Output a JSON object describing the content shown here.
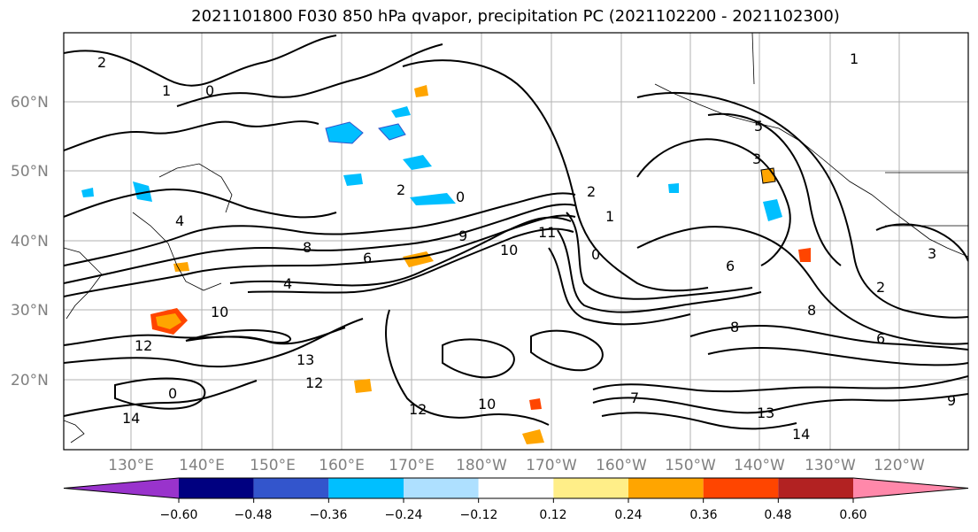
{
  "title": "2021101800 F030 850 hPa qvapor, precipitation PC (2021102200 - 2021102300)",
  "lat_labels": [
    "60°N",
    "50°N",
    "40°N",
    "30°N",
    "20°N"
  ],
  "lon_labels": [
    "130°E",
    "140°E",
    "150°E",
    "160°E",
    "170°E",
    "180°W",
    "170°W",
    "160°W",
    "150°W",
    "140°W",
    "130°W",
    "120°W"
  ],
  "contour_labels": [
    "2",
    "1",
    "0",
    "5",
    "3",
    "2",
    "0",
    "1",
    "4",
    "0",
    "2",
    "8",
    "6",
    "9",
    "11",
    "10",
    "6",
    "8",
    "4",
    "10",
    "12",
    "8",
    "12",
    "13",
    "14",
    "12",
    "10",
    "14",
    "13",
    "1",
    "3",
    "2",
    "6",
    "9",
    "7",
    "0"
  ],
  "colorbar": {
    "colors": [
      "#9933cc",
      "#000080",
      "#3355cc",
      "#00bfff",
      "#aee0ff",
      "#ffffff",
      "#ffee88",
      "#ffa500",
      "#ff4500",
      "#b22222",
      "#ff88aa"
    ],
    "ticks": [
      "−0.60",
      "−0.48",
      "−0.36",
      "−0.24",
      "−0.12",
      "0.12",
      "0.24",
      "0.36",
      "0.48",
      "0.60"
    ]
  },
  "colors": {
    "grid": "#a0a0a0",
    "contour": "#000000",
    "positive_precip": "#ffa500",
    "negative_precip": "#00bfff",
    "tick_label": "#808080"
  }
}
